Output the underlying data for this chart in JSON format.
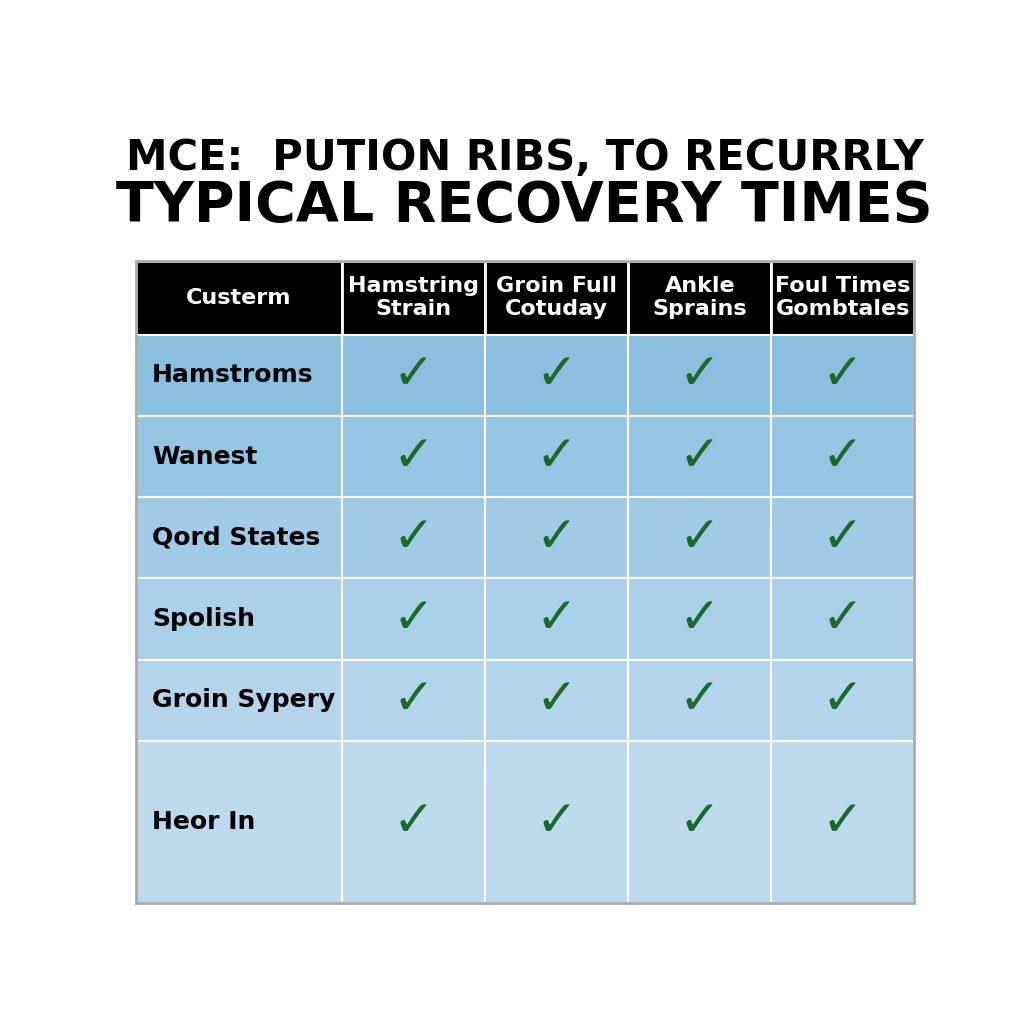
{
  "title_line1": "MCE:  PUTION RIBS, TO RECURRLY",
  "title_line2": "TYPICAL RECOVERY TIMES",
  "header_row": [
    "Custerm",
    "Hamstring\nStrain",
    "Groin Full\nCotuday",
    "Ankle\nSprains",
    "Foul Times\nGombtales"
  ],
  "rows": [
    "Hamstroms",
    "Wanest",
    "Qord States",
    "Spolish",
    "Groin Sypery",
    "Heor In"
  ],
  "checks": [
    [
      true,
      true,
      true,
      true
    ],
    [
      true,
      true,
      true,
      true
    ],
    [
      true,
      true,
      true,
      true
    ],
    [
      true,
      true,
      true,
      true
    ],
    [
      true,
      true,
      true,
      true
    ],
    [
      true,
      true,
      true,
      true
    ]
  ],
  "header_bg": "#000000",
  "header_text_color": "#ffffff",
  "cell_bg_colors": [
    "#8bbfe0",
    "#96c5e3",
    "#a0cae6",
    "#aacfe8",
    "#b4d4eb",
    "#bdd9ed"
  ],
  "check_color": "#1a6b2a",
  "title_color": "#000000",
  "bg_color": "#ffffff",
  "border_color": "#ffffff",
  "title_fontsize1": 30,
  "title_fontsize2": 40,
  "header_fontsize": 16,
  "row_fontsize": 18,
  "check_fontsize": 36,
  "row_heights": [
    1,
    1,
    1,
    1,
    1,
    2
  ]
}
